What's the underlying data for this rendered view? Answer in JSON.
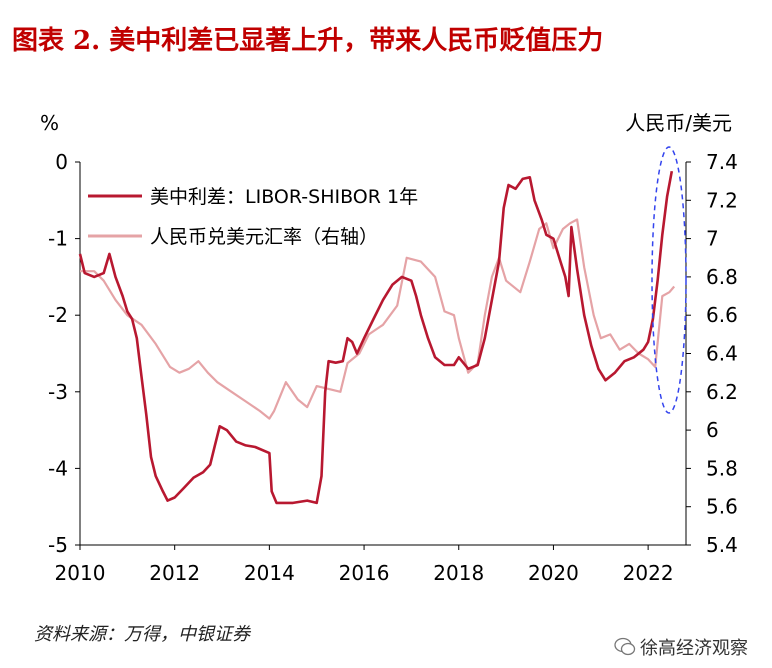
{
  "title": "图表 2.  美中利差已显著上升，带来人民币贬值压力",
  "source": "资料来源：万得，中银证券",
  "watermark": "徐高经济观察",
  "colors": {
    "title": "#c00000",
    "spread": "#b81830",
    "fx": "#e5a3a6",
    "highlight": "#3344ee",
    "axis": "#000000"
  },
  "chart_data": {
    "type": "line",
    "left_axis_unit": "%",
    "right_axis_unit": "人民币/美元",
    "xlim": [
      2010,
      2022.8
    ],
    "ylim_left": [
      -5,
      0
    ],
    "ylim_right": [
      5.4,
      7.4
    ],
    "x_ticks": [
      2010,
      2012,
      2014,
      2016,
      2018,
      2020,
      2022
    ],
    "y_ticks_left": [
      0,
      -1,
      -2,
      -3,
      -4,
      -5
    ],
    "y_ticks_right": [
      7.4,
      7.2,
      7,
      6.8,
      6.6,
      6.4,
      6.2,
      6,
      5.8,
      5.6,
      5.4
    ],
    "series": [
      {
        "name": "美中利差：LIBOR-SHIBOR 1年",
        "axis": "left",
        "points": [
          [
            2010.0,
            -1.2
          ],
          [
            2010.1,
            -1.45
          ],
          [
            2010.3,
            -1.5
          ],
          [
            2010.5,
            -1.45
          ],
          [
            2010.62,
            -1.2
          ],
          [
            2010.75,
            -1.5
          ],
          [
            2010.9,
            -1.75
          ],
          [
            2011.0,
            -1.95
          ],
          [
            2011.1,
            -2.05
          ],
          [
            2011.2,
            -2.3
          ],
          [
            2011.3,
            -2.8
          ],
          [
            2011.4,
            -3.3
          ],
          [
            2011.5,
            -3.85
          ],
          [
            2011.6,
            -4.1
          ],
          [
            2011.75,
            -4.3
          ],
          [
            2011.85,
            -4.42
          ],
          [
            2012.0,
            -4.38
          ],
          [
            2012.2,
            -4.25
          ],
          [
            2012.4,
            -4.12
          ],
          [
            2012.6,
            -4.05
          ],
          [
            2012.75,
            -3.95
          ],
          [
            2012.85,
            -3.7
          ],
          [
            2012.95,
            -3.45
          ],
          [
            2013.1,
            -3.5
          ],
          [
            2013.3,
            -3.65
          ],
          [
            2013.5,
            -3.7
          ],
          [
            2013.7,
            -3.72
          ],
          [
            2014.0,
            -3.8
          ],
          [
            2014.05,
            -4.3
          ],
          [
            2014.15,
            -4.45
          ],
          [
            2014.5,
            -4.45
          ],
          [
            2014.8,
            -4.42
          ],
          [
            2015.0,
            -4.45
          ],
          [
            2015.1,
            -4.1
          ],
          [
            2015.18,
            -3.0
          ],
          [
            2015.25,
            -2.6
          ],
          [
            2015.4,
            -2.62
          ],
          [
            2015.55,
            -2.6
          ],
          [
            2015.65,
            -2.3
          ],
          [
            2015.75,
            -2.35
          ],
          [
            2015.85,
            -2.5
          ],
          [
            2016.0,
            -2.3
          ],
          [
            2016.2,
            -2.05
          ],
          [
            2016.4,
            -1.8
          ],
          [
            2016.6,
            -1.6
          ],
          [
            2016.8,
            -1.5
          ],
          [
            2017.0,
            -1.55
          ],
          [
            2017.1,
            -1.75
          ],
          [
            2017.2,
            -2.0
          ],
          [
            2017.35,
            -2.3
          ],
          [
            2017.5,
            -2.55
          ],
          [
            2017.7,
            -2.65
          ],
          [
            2017.9,
            -2.65
          ],
          [
            2018.0,
            -2.55
          ],
          [
            2018.2,
            -2.7
          ],
          [
            2018.4,
            -2.65
          ],
          [
            2018.55,
            -2.3
          ],
          [
            2018.7,
            -1.8
          ],
          [
            2018.85,
            -1.3
          ],
          [
            2018.95,
            -0.6
          ],
          [
            2019.05,
            -0.3
          ],
          [
            2019.2,
            -0.35
          ],
          [
            2019.35,
            -0.22
          ],
          [
            2019.5,
            -0.2
          ],
          [
            2019.6,
            -0.5
          ],
          [
            2019.75,
            -0.75
          ],
          [
            2019.85,
            -0.95
          ],
          [
            2020.0,
            -1.0
          ],
          [
            2020.15,
            -1.3
          ],
          [
            2020.25,
            -1.5
          ],
          [
            2020.32,
            -1.75
          ],
          [
            2020.38,
            -0.85
          ],
          [
            2020.5,
            -1.4
          ],
          [
            2020.65,
            -2.0
          ],
          [
            2020.8,
            -2.4
          ],
          [
            2020.95,
            -2.7
          ],
          [
            2021.1,
            -2.85
          ],
          [
            2021.3,
            -2.75
          ],
          [
            2021.5,
            -2.6
          ],
          [
            2021.7,
            -2.55
          ],
          [
            2021.9,
            -2.45
          ],
          [
            2022.0,
            -2.35
          ],
          [
            2022.1,
            -2.05
          ],
          [
            2022.2,
            -1.55
          ],
          [
            2022.3,
            -0.95
          ],
          [
            2022.4,
            -0.45
          ],
          [
            2022.5,
            -0.12
          ]
        ]
      },
      {
        "name": "人民币兑美元汇率（右轴）",
        "axis": "right",
        "points": [
          [
            2010.0,
            6.83
          ],
          [
            2010.3,
            6.83
          ],
          [
            2010.5,
            6.78
          ],
          [
            2010.75,
            6.68
          ],
          [
            2011.0,
            6.6
          ],
          [
            2011.3,
            6.55
          ],
          [
            2011.6,
            6.45
          ],
          [
            2011.9,
            6.33
          ],
          [
            2012.1,
            6.3
          ],
          [
            2012.3,
            6.32
          ],
          [
            2012.5,
            6.36
          ],
          [
            2012.7,
            6.3
          ],
          [
            2012.9,
            6.25
          ],
          [
            2013.2,
            6.2
          ],
          [
            2013.5,
            6.15
          ],
          [
            2013.8,
            6.1
          ],
          [
            2014.0,
            6.06
          ],
          [
            2014.1,
            6.1
          ],
          [
            2014.35,
            6.25
          ],
          [
            2014.6,
            6.16
          ],
          [
            2014.8,
            6.12
          ],
          [
            2015.0,
            6.23
          ],
          [
            2015.5,
            6.2
          ],
          [
            2015.65,
            6.35
          ],
          [
            2015.9,
            6.4
          ],
          [
            2016.1,
            6.5
          ],
          [
            2016.4,
            6.55
          ],
          [
            2016.7,
            6.65
          ],
          [
            2016.9,
            6.9
          ],
          [
            2017.2,
            6.88
          ],
          [
            2017.5,
            6.8
          ],
          [
            2017.7,
            6.62
          ],
          [
            2017.9,
            6.6
          ],
          [
            2018.0,
            6.48
          ],
          [
            2018.2,
            6.3
          ],
          [
            2018.4,
            6.35
          ],
          [
            2018.55,
            6.6
          ],
          [
            2018.7,
            6.8
          ],
          [
            2018.85,
            6.9
          ],
          [
            2019.0,
            6.78
          ],
          [
            2019.3,
            6.72
          ],
          [
            2019.5,
            6.88
          ],
          [
            2019.7,
            7.05
          ],
          [
            2019.85,
            7.08
          ],
          [
            2020.0,
            6.95
          ],
          [
            2020.2,
            7.05
          ],
          [
            2020.35,
            7.08
          ],
          [
            2020.5,
            7.1
          ],
          [
            2020.65,
            6.85
          ],
          [
            2020.85,
            6.6
          ],
          [
            2021.0,
            6.48
          ],
          [
            2021.2,
            6.5
          ],
          [
            2021.4,
            6.42
          ],
          [
            2021.6,
            6.45
          ],
          [
            2021.8,
            6.4
          ],
          [
            2022.0,
            6.37
          ],
          [
            2022.15,
            6.33
          ],
          [
            2022.3,
            6.7
          ],
          [
            2022.45,
            6.72
          ],
          [
            2022.55,
            6.75
          ]
        ]
      }
    ]
  }
}
